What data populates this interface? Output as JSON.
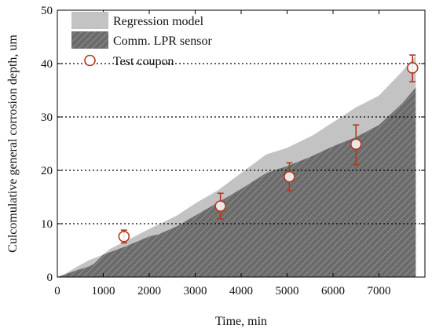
{
  "chart_data": {
    "type": "area",
    "title": "",
    "xlabel": "Time, min",
    "ylabel": "Culcomulative general corrosion depth, um",
    "xlim": [
      0,
      8000
    ],
    "ylim": [
      0,
      50
    ],
    "x_ticks": [
      0,
      1000,
      2000,
      3000,
      4000,
      5000,
      6000,
      7000
    ],
    "y_ticks": [
      0,
      10,
      20,
      30,
      40,
      50
    ],
    "grid": "dotted horizontal at 10, 20, 30, 40",
    "legend_position": "top-left",
    "colors": {
      "regression": "#c3c3c3",
      "lpr": "#6b6b6b",
      "lpr_hatch": "#9a9a9a",
      "coupon": "#b03a1e",
      "gridline": "#000000"
    },
    "series": [
      {
        "name": "Regression model",
        "kind": "area",
        "x": [
          0,
          150,
          400,
          700,
          1000,
          1150,
          1500,
          2000,
          2600,
          3000,
          3500,
          4000,
          4550,
          5000,
          5550,
          6000,
          6500,
          7000,
          7500,
          7800
        ],
        "y": [
          0,
          0.5,
          1.8,
          3.2,
          4.2,
          5.3,
          6.8,
          9.0,
          11.5,
          13.8,
          16.3,
          19.5,
          23.0,
          24.2,
          26.5,
          29.0,
          31.8,
          34.0,
          38.5,
          41.5
        ]
      },
      {
        "name": "Comm. LPR sensor",
        "kind": "area",
        "x": [
          0,
          400,
          700,
          800,
          1000,
          1500,
          2000,
          2200,
          2600,
          3000,
          3500,
          4000,
          4550,
          5000,
          5500,
          6000,
          6500,
          7000,
          7500,
          7800
        ],
        "y": [
          0,
          1.2,
          2.0,
          2.5,
          4.2,
          5.8,
          7.6,
          8.0,
          9.5,
          11.5,
          14.0,
          16.5,
          19.5,
          20.8,
          22.5,
          24.5,
          26.2,
          28.5,
          32.5,
          35.5
        ]
      },
      {
        "name": "Test coupon",
        "kind": "scatter",
        "x": [
          1450,
          3550,
          5050,
          6500,
          7730
        ],
        "y": [
          7.6,
          13.3,
          18.8,
          24.9,
          39.2
        ],
        "err_low": [
          1.2,
          2.4,
          2.6,
          3.8,
          2.6
        ],
        "err_high": [
          1.2,
          2.4,
          2.6,
          3.6,
          2.4
        ]
      }
    ]
  }
}
